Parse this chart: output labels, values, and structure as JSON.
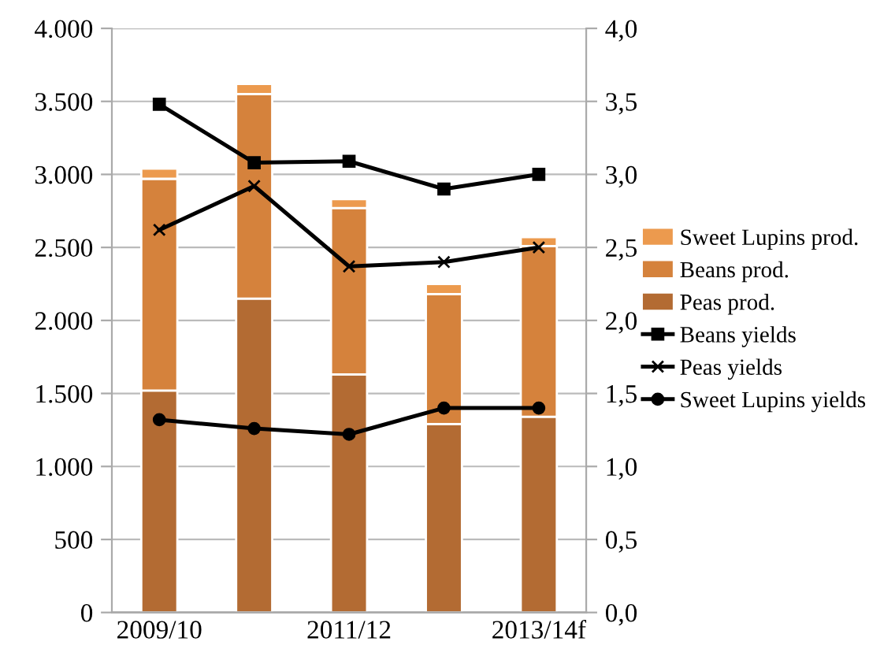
{
  "chart_data": {
    "type": "bar",
    "stacked": true,
    "categories": [
      "2009/10",
      null,
      "2011/12",
      null,
      "2013/14f"
    ],
    "series": [
      {
        "name": "Peas prod.",
        "color": "#b36b33",
        "values": [
          1520,
          2150,
          1630,
          1290,
          1340
        ]
      },
      {
        "name": "Beans prod.",
        "color": "#d5823c",
        "values": [
          1450,
          1400,
          1140,
          890,
          1170
        ]
      },
      {
        "name": "Sweet Lupins prod.",
        "color": "#ec9a4e",
        "values": [
          70,
          70,
          60,
          70,
          60
        ]
      },
      {
        "name": "Beans yields",
        "type": "line",
        "axis": "y2",
        "marker": "square",
        "color": "#000000",
        "values": [
          3.48,
          3.08,
          3.09,
          2.9,
          3.0
        ]
      },
      {
        "name": "Peas yields",
        "type": "line",
        "axis": "y2",
        "marker": "cross",
        "color": "#000000",
        "values": [
          2.62,
          2.92,
          2.37,
          2.4,
          2.5
        ]
      },
      {
        "name": "Sweet Lupins yields",
        "type": "line",
        "axis": "y2",
        "marker": "circle",
        "color": "#000000",
        "values": [
          1.32,
          1.26,
          1.22,
          1.4,
          1.4
        ]
      }
    ],
    "ylim": [
      0,
      4000
    ],
    "yticks": [
      {
        "value": 0,
        "label": "0"
      },
      {
        "value": 500,
        "label": "500"
      },
      {
        "value": 1000,
        "label": "1.000"
      },
      {
        "value": 1500,
        "label": "1.500"
      },
      {
        "value": 2000,
        "label": "2.000"
      },
      {
        "value": 2500,
        "label": "2.500"
      },
      {
        "value": 3000,
        "label": "3.000"
      },
      {
        "value": 3500,
        "label": "3.500"
      },
      {
        "value": 4000,
        "label": "4.000"
      }
    ],
    "y2lim": [
      0,
      4
    ],
    "y2ticks": [
      {
        "value": 0,
        "label": "0,0"
      },
      {
        "value": 0.5,
        "label": "0,5"
      },
      {
        "value": 1,
        "label": "1,0"
      },
      {
        "value": 1.5,
        "label": "1,5"
      },
      {
        "value": 2,
        "label": "2,0"
      },
      {
        "value": 2.5,
        "label": "2,5"
      },
      {
        "value": 3,
        "label": "3,0"
      },
      {
        "value": 3.5,
        "label": "3,5"
      },
      {
        "value": 4,
        "label": "4,0"
      }
    ],
    "grid": "y",
    "legend": "right"
  }
}
